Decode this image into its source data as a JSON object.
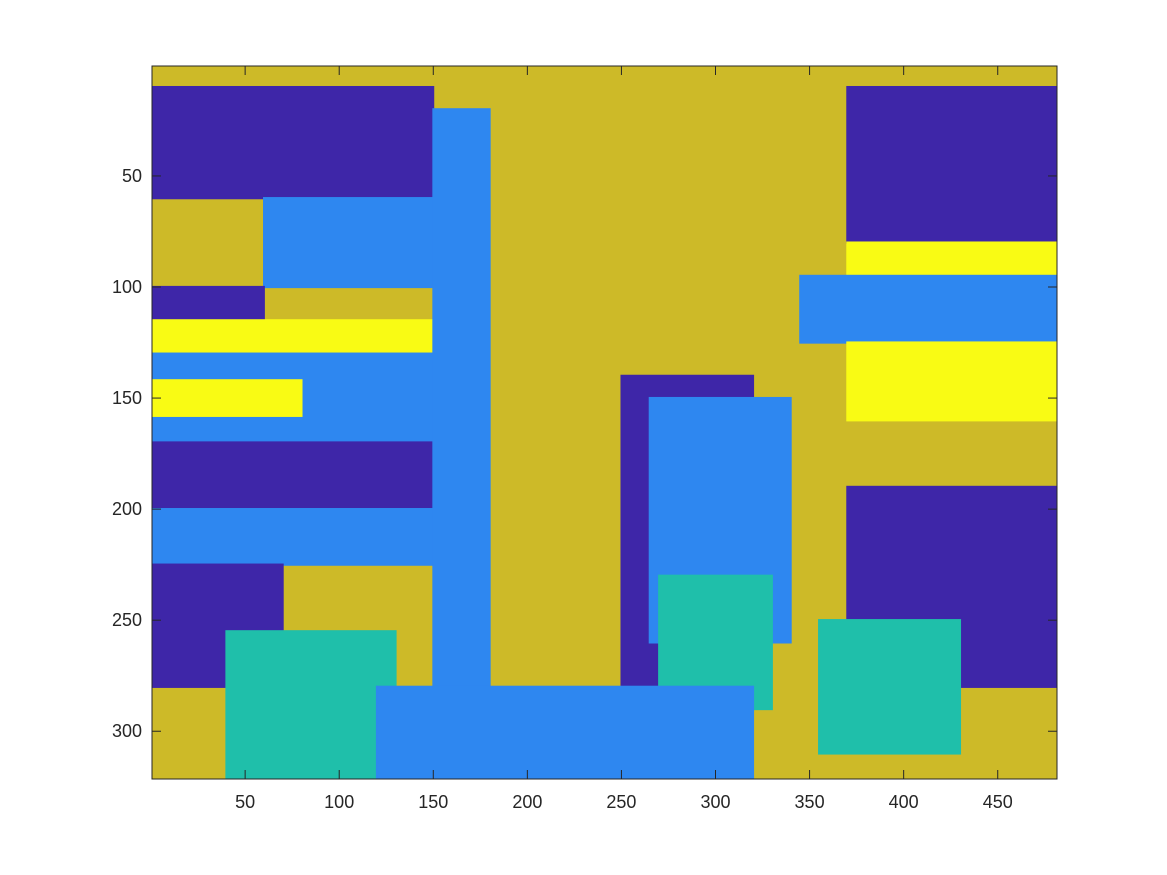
{
  "chart_data": {
    "type": "heatmap",
    "title": "",
    "xlabel": "",
    "ylabel": "",
    "xlim": [
      0.5,
      481.5
    ],
    "ylim": [
      0.5,
      321.5
    ],
    "y_direction": "reversed",
    "x_ticks": [
      50,
      100,
      150,
      200,
      250,
      300,
      350,
      400,
      450
    ],
    "y_ticks": [
      50,
      100,
      150,
      200,
      250,
      300
    ],
    "grid": false,
    "colormap": [
      "#3e26a8",
      "#2e87f0",
      "#1fbfaa",
      "#cdba28",
      "#f9fb14"
    ],
    "classes": [
      1,
      2,
      3,
      4,
      5
    ],
    "regions": [
      {
        "class": 4,
        "x": [
          1,
          481
        ],
        "y": [
          1,
          321
        ]
      },
      {
        "class": 1,
        "x": [
          1,
          150
        ],
        "y": [
          10,
          60
        ]
      },
      {
        "class": 2,
        "x": [
          60,
          150
        ],
        "y": [
          60,
          100
        ]
      },
      {
        "class": 1,
        "x": [
          1,
          60
        ],
        "y": [
          100,
          115
        ]
      },
      {
        "class": 5,
        "x": [
          1,
          150
        ],
        "y": [
          115,
          130
        ]
      },
      {
        "class": 2,
        "x": [
          1,
          150
        ],
        "y": [
          130,
          170
        ]
      },
      {
        "class": 5,
        "x": [
          1,
          80
        ],
        "y": [
          142,
          158
        ]
      },
      {
        "class": 1,
        "x": [
          1,
          150
        ],
        "y": [
          170,
          200
        ]
      },
      {
        "class": 2,
        "x": [
          1,
          150
        ],
        "y": [
          200,
          225
        ]
      },
      {
        "class": 1,
        "x": [
          1,
          70
        ],
        "y": [
          225,
          280
        ]
      },
      {
        "class": 3,
        "x": [
          40,
          130
        ],
        "y": [
          255,
          321
        ]
      },
      {
        "class": 2,
        "x": [
          150,
          180
        ],
        "y": [
          20,
          280
        ]
      },
      {
        "class": 1,
        "x": [
          250,
          320
        ],
        "y": [
          140,
          280
        ]
      },
      {
        "class": 2,
        "x": [
          265,
          340
        ],
        "y": [
          150,
          260
        ]
      },
      {
        "class": 3,
        "x": [
          270,
          330
        ],
        "y": [
          230,
          290
        ]
      },
      {
        "class": 2,
        "x": [
          120,
          320
        ],
        "y": [
          280,
          321
        ]
      },
      {
        "class": 1,
        "x": [
          370,
          481
        ],
        "y": [
          10,
          80
        ]
      },
      {
        "class": 5,
        "x": [
          370,
          481
        ],
        "y": [
          80,
          95
        ]
      },
      {
        "class": 2,
        "x": [
          345,
          481
        ],
        "y": [
          95,
          125
        ]
      },
      {
        "class": 5,
        "x": [
          370,
          481
        ],
        "y": [
          125,
          160
        ]
      },
      {
        "class": 1,
        "x": [
          370,
          481
        ],
        "y": [
          190,
          280
        ]
      },
      {
        "class": 3,
        "x": [
          355,
          430
        ],
        "y": [
          250,
          310
        ]
      }
    ]
  }
}
